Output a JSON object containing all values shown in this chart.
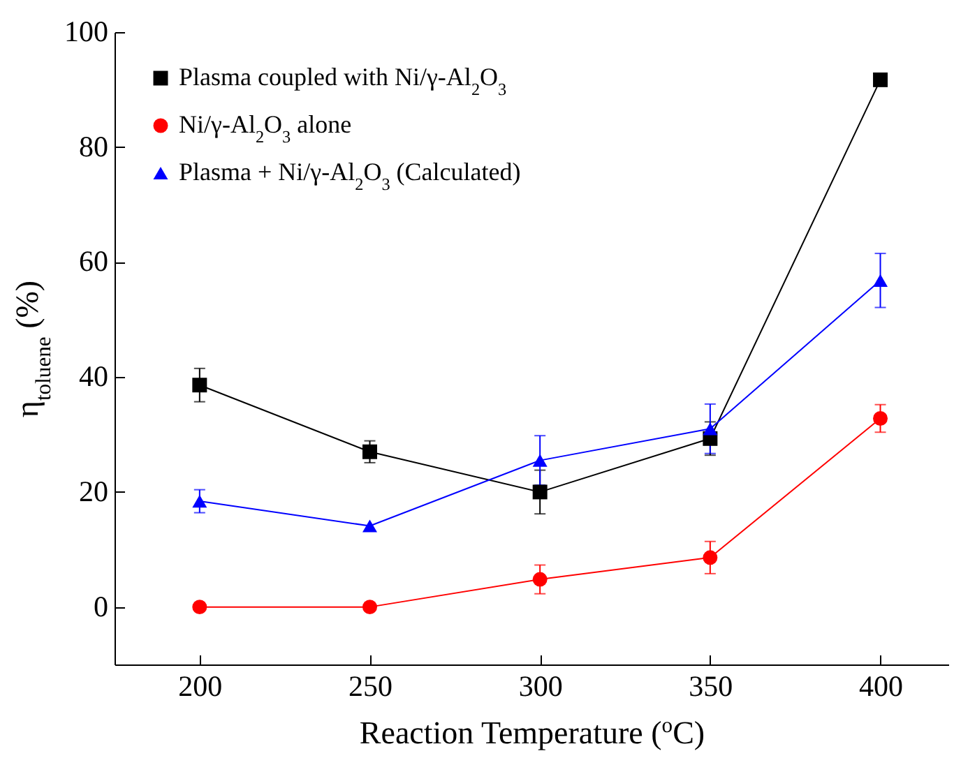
{
  "chart_data": {
    "type": "line",
    "xlabel": "Reaction Temperature ($^{o}$C)",
    "ylabel": "η$_{toluene}$ (%)",
    "x": [
      200,
      250,
      300,
      350,
      400
    ],
    "series": [
      {
        "name": "Plasma coupled with Ni/γ-Al$_{2}$O$_{3}$",
        "color": "#000000",
        "marker": "square",
        "values": [
          38.6,
          27,
          20,
          29.3,
          91.7
        ],
        "errors": [
          2.9,
          1.9,
          3.8,
          2.9,
          null
        ]
      },
      {
        "name": "Ni/γ-Al$_{2}$O$_{3}$ alone",
        "color": "#ff0000",
        "marker": "circle",
        "values": [
          0,
          0,
          4.8,
          8.6,
          32.8
        ],
        "errors": [
          null,
          null,
          2.5,
          2.8,
          2.4
        ]
      },
      {
        "name": "Plasma  + Ni/γ-Al$_{2}$O$_{3}$ (Calculated)",
        "color": "#0000ff",
        "marker": "triangle",
        "values": [
          18.4,
          14.1,
          25.5,
          31,
          56.8
        ],
        "errors": [
          2,
          null,
          4.3,
          4.3,
          4.7
        ]
      }
    ],
    "xlim": [
      175,
      420
    ],
    "xticks": [
      200,
      250,
      300,
      350,
      400
    ],
    "ylim": [
      -10,
      100
    ],
    "yticks": [
      0,
      20,
      40,
      60,
      80,
      100
    ],
    "legend": "top left",
    "grid": false
  }
}
